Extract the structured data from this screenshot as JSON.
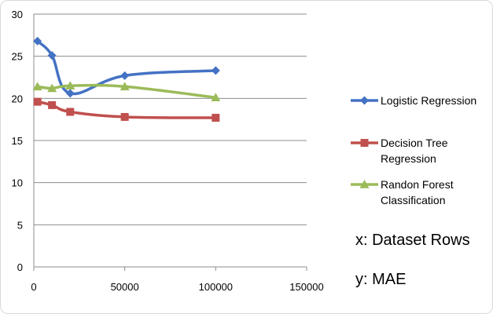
{
  "chart_data": {
    "type": "line",
    "title": "",
    "xlabel": "",
    "ylabel": "",
    "xlim": [
      0,
      150000
    ],
    "ylim": [
      0,
      30
    ],
    "x_ticks": [
      "0",
      "50000",
      "100000",
      "150000"
    ],
    "y_ticks": [
      "0",
      "5",
      "10",
      "15",
      "20",
      "25",
      "30"
    ],
    "grid": "horizontal",
    "legend_position": "right",
    "x": [
      2000,
      10000,
      20000,
      50000,
      100000
    ],
    "series": [
      {
        "name": "Logistic Regression",
        "values": [
          26.8,
          25.1,
          20.6,
          22.7,
          23.3
        ],
        "color": "#4472c4",
        "marker": "diamond",
        "legend_lines": [
          "Logistic Regression"
        ]
      },
      {
        "name": "Decision Tree Regression",
        "values": [
          19.6,
          19.2,
          18.4,
          17.8,
          17.7
        ],
        "color": "#c0504d",
        "marker": "square",
        "legend_lines": [
          "Decision Tree",
          "Regression"
        ]
      },
      {
        "name": "Randon Forest Classification",
        "values": [
          21.4,
          21.2,
          21.5,
          21.4,
          20.1
        ],
        "color": "#9bbb59",
        "marker": "triangle",
        "legend_lines": [
          "Randon Forest",
          "Classification"
        ]
      }
    ],
    "annotations": [
      "x: Dataset Rows",
      "y: MAE"
    ]
  }
}
